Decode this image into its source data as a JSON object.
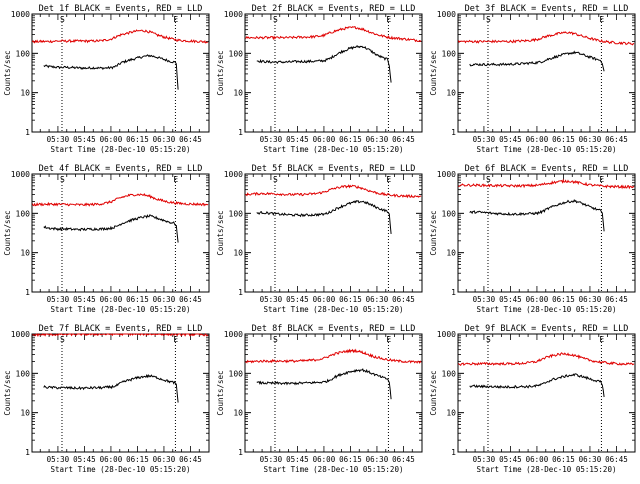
{
  "colors": {
    "events": "#000000",
    "lld": "#e00000",
    "axis": "#000000",
    "background": "#ffffff"
  },
  "axes": {
    "ylabel": "Counts/sec",
    "xlabel": "Start Time (28-Dec-10 05:15:20)",
    "yscale": "log",
    "ylim": [
      1,
      1000
    ],
    "y_tick_labels": [
      "1",
      "10",
      "100",
      "1000"
    ],
    "x_tick_labels": [
      "05:30",
      "05:45",
      "06:00",
      "06:15",
      "06:30",
      "06:45"
    ],
    "x_tick_minutes": [
      30,
      45,
      60,
      75,
      90,
      105
    ],
    "xlim_minutes": [
      15.33,
      115.5
    ],
    "marker_s_minutes": 32.3,
    "marker_e_minutes": 96.5,
    "marker_labels": [
      "S",
      "E"
    ],
    "grid": false
  },
  "chart_data": [
    {
      "type": "line",
      "title": "Det 1f BLACK = Events, RED = LLD",
      "series": [
        {
          "name": "Events",
          "color": "#000000",
          "x": [
            22,
            25,
            30,
            35,
            40,
            45,
            50,
            55,
            60,
            63,
            66,
            70,
            74,
            78,
            82,
            86,
            90,
            94,
            96,
            97,
            98
          ],
          "y": [
            48,
            46,
            44,
            44,
            43,
            42,
            43,
            42,
            43,
            47,
            58,
            66,
            74,
            82,
            88,
            80,
            70,
            62,
            60,
            55,
            12
          ]
        },
        {
          "name": "LLD",
          "color": "#e00000",
          "x": [
            15.5,
            20,
            25,
            30,
            35,
            40,
            45,
            50,
            55,
            60,
            63,
            66,
            70,
            74,
            78,
            82,
            86,
            90,
            94,
            98,
            102,
            106,
            110,
            115
          ],
          "y": [
            195,
            200,
            200,
            205,
            205,
            205,
            205,
            205,
            210,
            230,
            265,
            300,
            330,
            365,
            380,
            350,
            295,
            260,
            235,
            215,
            210,
            205,
            200,
            195
          ]
        }
      ]
    },
    {
      "type": "line",
      "title": "Det 2f BLACK = Events, RED = LLD",
      "series": [
        {
          "name": "Events",
          "color": "#000000",
          "x": [
            22,
            25,
            30,
            35,
            40,
            45,
            50,
            55,
            60,
            63,
            66,
            70,
            74,
            78,
            82,
            86,
            90,
            94,
            96,
            97,
            98
          ],
          "y": [
            65,
            62,
            60,
            60,
            60,
            62,
            62,
            63,
            65,
            72,
            88,
            110,
            130,
            145,
            150,
            120,
            90,
            75,
            70,
            50,
            18
          ]
        },
        {
          "name": "LLD",
          "color": "#e00000",
          "x": [
            15.5,
            20,
            25,
            30,
            35,
            40,
            45,
            50,
            55,
            60,
            63,
            66,
            70,
            74,
            78,
            82,
            86,
            90,
            94,
            98,
            102,
            106,
            110,
            115
          ],
          "y": [
            250,
            250,
            250,
            250,
            250,
            250,
            255,
            260,
            265,
            285,
            325,
            365,
            410,
            445,
            455,
            410,
            350,
            300,
            270,
            250,
            240,
            230,
            220,
            210
          ]
        }
      ]
    },
    {
      "type": "line",
      "title": "Det 3f BLACK = Events, RED = LLD",
      "series": [
        {
          "name": "Events",
          "color": "#000000",
          "x": [
            22,
            25,
            30,
            35,
            40,
            45,
            50,
            55,
            60,
            63,
            66,
            70,
            74,
            78,
            82,
            86,
            90,
            94,
            96,
            97,
            98
          ],
          "y": [
            52,
            52,
            52,
            52,
            52,
            53,
            54,
            56,
            58,
            62,
            70,
            80,
            90,
            100,
            105,
            92,
            80,
            70,
            66,
            58,
            35
          ]
        },
        {
          "name": "LLD",
          "color": "#e00000",
          "x": [
            15.5,
            20,
            25,
            30,
            35,
            40,
            45,
            50,
            55,
            60,
            63,
            66,
            70,
            74,
            78,
            82,
            86,
            90,
            94,
            98,
            102,
            106,
            110,
            115
          ],
          "y": [
            200,
            200,
            200,
            200,
            200,
            200,
            200,
            205,
            210,
            225,
            250,
            275,
            300,
            330,
            340,
            310,
            270,
            240,
            215,
            200,
            190,
            185,
            180,
            175
          ]
        }
      ]
    },
    {
      "type": "line",
      "title": "Det 4f BLACK = Events, RED = LLD",
      "series": [
        {
          "name": "Events",
          "color": "#000000",
          "x": [
            22,
            25,
            30,
            35,
            40,
            45,
            50,
            55,
            60,
            63,
            66,
            70,
            74,
            78,
            82,
            86,
            90,
            94,
            96,
            97,
            98
          ],
          "y": [
            45,
            42,
            40,
            40,
            39,
            39,
            40,
            40,
            42,
            46,
            55,
            64,
            72,
            80,
            85,
            76,
            66,
            58,
            56,
            48,
            18
          ]
        },
        {
          "name": "LLD",
          "color": "#e00000",
          "x": [
            15.5,
            20,
            25,
            30,
            35,
            40,
            45,
            50,
            55,
            60,
            63,
            66,
            70,
            74,
            78,
            82,
            86,
            90,
            94,
            98,
            102,
            106,
            110,
            115
          ],
          "y": [
            165,
            170,
            170,
            170,
            168,
            165,
            165,
            168,
            175,
            195,
            225,
            255,
            285,
            300,
            300,
            270,
            230,
            205,
            190,
            180,
            175,
            172,
            170,
            168
          ]
        }
      ]
    },
    {
      "type": "line",
      "title": "Det 5f BLACK = Events, RED = LLD",
      "series": [
        {
          "name": "Events",
          "color": "#000000",
          "x": [
            22,
            25,
            30,
            35,
            40,
            45,
            50,
            55,
            60,
            63,
            66,
            70,
            74,
            78,
            82,
            86,
            90,
            94,
            96,
            97,
            98
          ],
          "y": [
            100,
            105,
            100,
            95,
            92,
            90,
            90,
            92,
            95,
            105,
            125,
            150,
            175,
            195,
            200,
            170,
            140,
            120,
            112,
            90,
            30
          ]
        },
        {
          "name": "LLD",
          "color": "#e00000",
          "x": [
            15.5,
            20,
            25,
            30,
            35,
            40,
            45,
            50,
            55,
            60,
            63,
            66,
            70,
            74,
            78,
            82,
            86,
            90,
            94,
            98,
            102,
            106,
            110,
            115
          ],
          "y": [
            300,
            310,
            320,
            315,
            310,
            300,
            300,
            305,
            315,
            345,
            390,
            430,
            470,
            490,
            480,
            430,
            370,
            330,
            305,
            290,
            280,
            275,
            272,
            270
          ]
        }
      ]
    },
    {
      "type": "line",
      "title": "Det 6f BLACK = Events, RED = LLD",
      "series": [
        {
          "name": "Events",
          "color": "#000000",
          "x": [
            22,
            25,
            30,
            35,
            40,
            45,
            50,
            55,
            60,
            63,
            66,
            70,
            74,
            78,
            82,
            86,
            90,
            94,
            96,
            97,
            98
          ],
          "y": [
            105,
            108,
            105,
            100,
            98,
            96,
            96,
            98,
            100,
            110,
            130,
            155,
            180,
            200,
            205,
            175,
            145,
            125,
            118,
            95,
            35
          ]
        },
        {
          "name": "LLD",
          "color": "#e00000",
          "x": [
            15.5,
            20,
            25,
            30,
            35,
            40,
            45,
            50,
            55,
            60,
            63,
            66,
            70,
            74,
            78,
            82,
            86,
            90,
            94,
            98,
            102,
            106,
            110,
            115
          ],
          "y": [
            520,
            520,
            520,
            515,
            510,
            505,
            500,
            500,
            505,
            515,
            540,
            575,
            615,
            650,
            660,
            620,
            570,
            530,
            505,
            490,
            480,
            475,
            470,
            465
          ]
        }
      ]
    },
    {
      "type": "line",
      "title": "Det 7f BLACK = Events, RED = LLD",
      "series": [
        {
          "name": "Events",
          "color": "#000000",
          "x": [
            22,
            25,
            30,
            35,
            40,
            45,
            50,
            55,
            60,
            63,
            66,
            70,
            74,
            78,
            82,
            86,
            90,
            94,
            96,
            97,
            98
          ],
          "y": [
            45,
            44,
            43,
            43,
            42,
            42,
            43,
            43,
            45,
            48,
            58,
            67,
            75,
            82,
            86,
            78,
            68,
            60,
            58,
            50,
            18
          ]
        },
        {
          "name": "LLD",
          "color": "#e00000",
          "x": [
            15.5,
            20,
            25,
            30,
            35,
            40,
            45,
            50,
            55,
            60,
            63,
            66,
            70,
            74,
            78,
            82,
            86,
            90,
            94,
            98,
            102,
            106,
            110,
            115
          ],
          "y": [
            950,
            960,
            970,
            975,
            980,
            985,
            985,
            990,
            990,
            995,
            1000,
            1000,
            1000,
            1000,
            1000,
            1000,
            995,
            990,
            985,
            980,
            975,
            970,
            965,
            960
          ]
        }
      ]
    },
    {
      "type": "line",
      "title": "Det 8f BLACK = Events, RED = LLD",
      "series": [
        {
          "name": "Events",
          "color": "#000000",
          "x": [
            22,
            25,
            30,
            35,
            40,
            45,
            50,
            55,
            60,
            63,
            66,
            70,
            74,
            78,
            82,
            86,
            90,
            94,
            96,
            97,
            98
          ],
          "y": [
            58,
            57,
            56,
            56,
            55,
            56,
            57,
            58,
            60,
            66,
            80,
            95,
            108,
            118,
            122,
            105,
            88,
            76,
            72,
            60,
            22
          ]
        },
        {
          "name": "LLD",
          "color": "#e00000",
          "x": [
            15.5,
            20,
            25,
            30,
            35,
            40,
            45,
            50,
            55,
            60,
            63,
            66,
            70,
            74,
            78,
            82,
            86,
            90,
            94,
            98,
            102,
            106,
            110,
            115
          ],
          "y": [
            195,
            200,
            205,
            205,
            205,
            205,
            205,
            210,
            220,
            240,
            275,
            310,
            345,
            370,
            375,
            340,
            290,
            255,
            230,
            215,
            205,
            200,
            195,
            190
          ]
        }
      ]
    },
    {
      "type": "line",
      "title": "Det 9f BLACK = Events, RED = LLD",
      "series": [
        {
          "name": "Events",
          "color": "#000000",
          "x": [
            22,
            25,
            30,
            35,
            40,
            45,
            50,
            55,
            60,
            63,
            66,
            70,
            74,
            78,
            82,
            86,
            90,
            94,
            96,
            97,
            98
          ],
          "y": [
            48,
            47,
            46,
            46,
            45,
            45,
            46,
            46,
            48,
            52,
            62,
            72,
            80,
            88,
            92,
            82,
            72,
            64,
            60,
            50,
            25
          ]
        },
        {
          "name": "LLD",
          "color": "#e00000",
          "x": [
            15.5,
            20,
            25,
            30,
            35,
            40,
            45,
            50,
            55,
            60,
            63,
            66,
            70,
            74,
            78,
            82,
            86,
            90,
            94,
            98,
            102,
            106,
            110,
            115
          ],
          "y": [
            170,
            175,
            175,
            175,
            175,
            175,
            175,
            178,
            185,
            200,
            230,
            260,
            290,
            310,
            310,
            280,
            240,
            215,
            198,
            188,
            180,
            176,
            172,
            170
          ]
        }
      ]
    }
  ]
}
